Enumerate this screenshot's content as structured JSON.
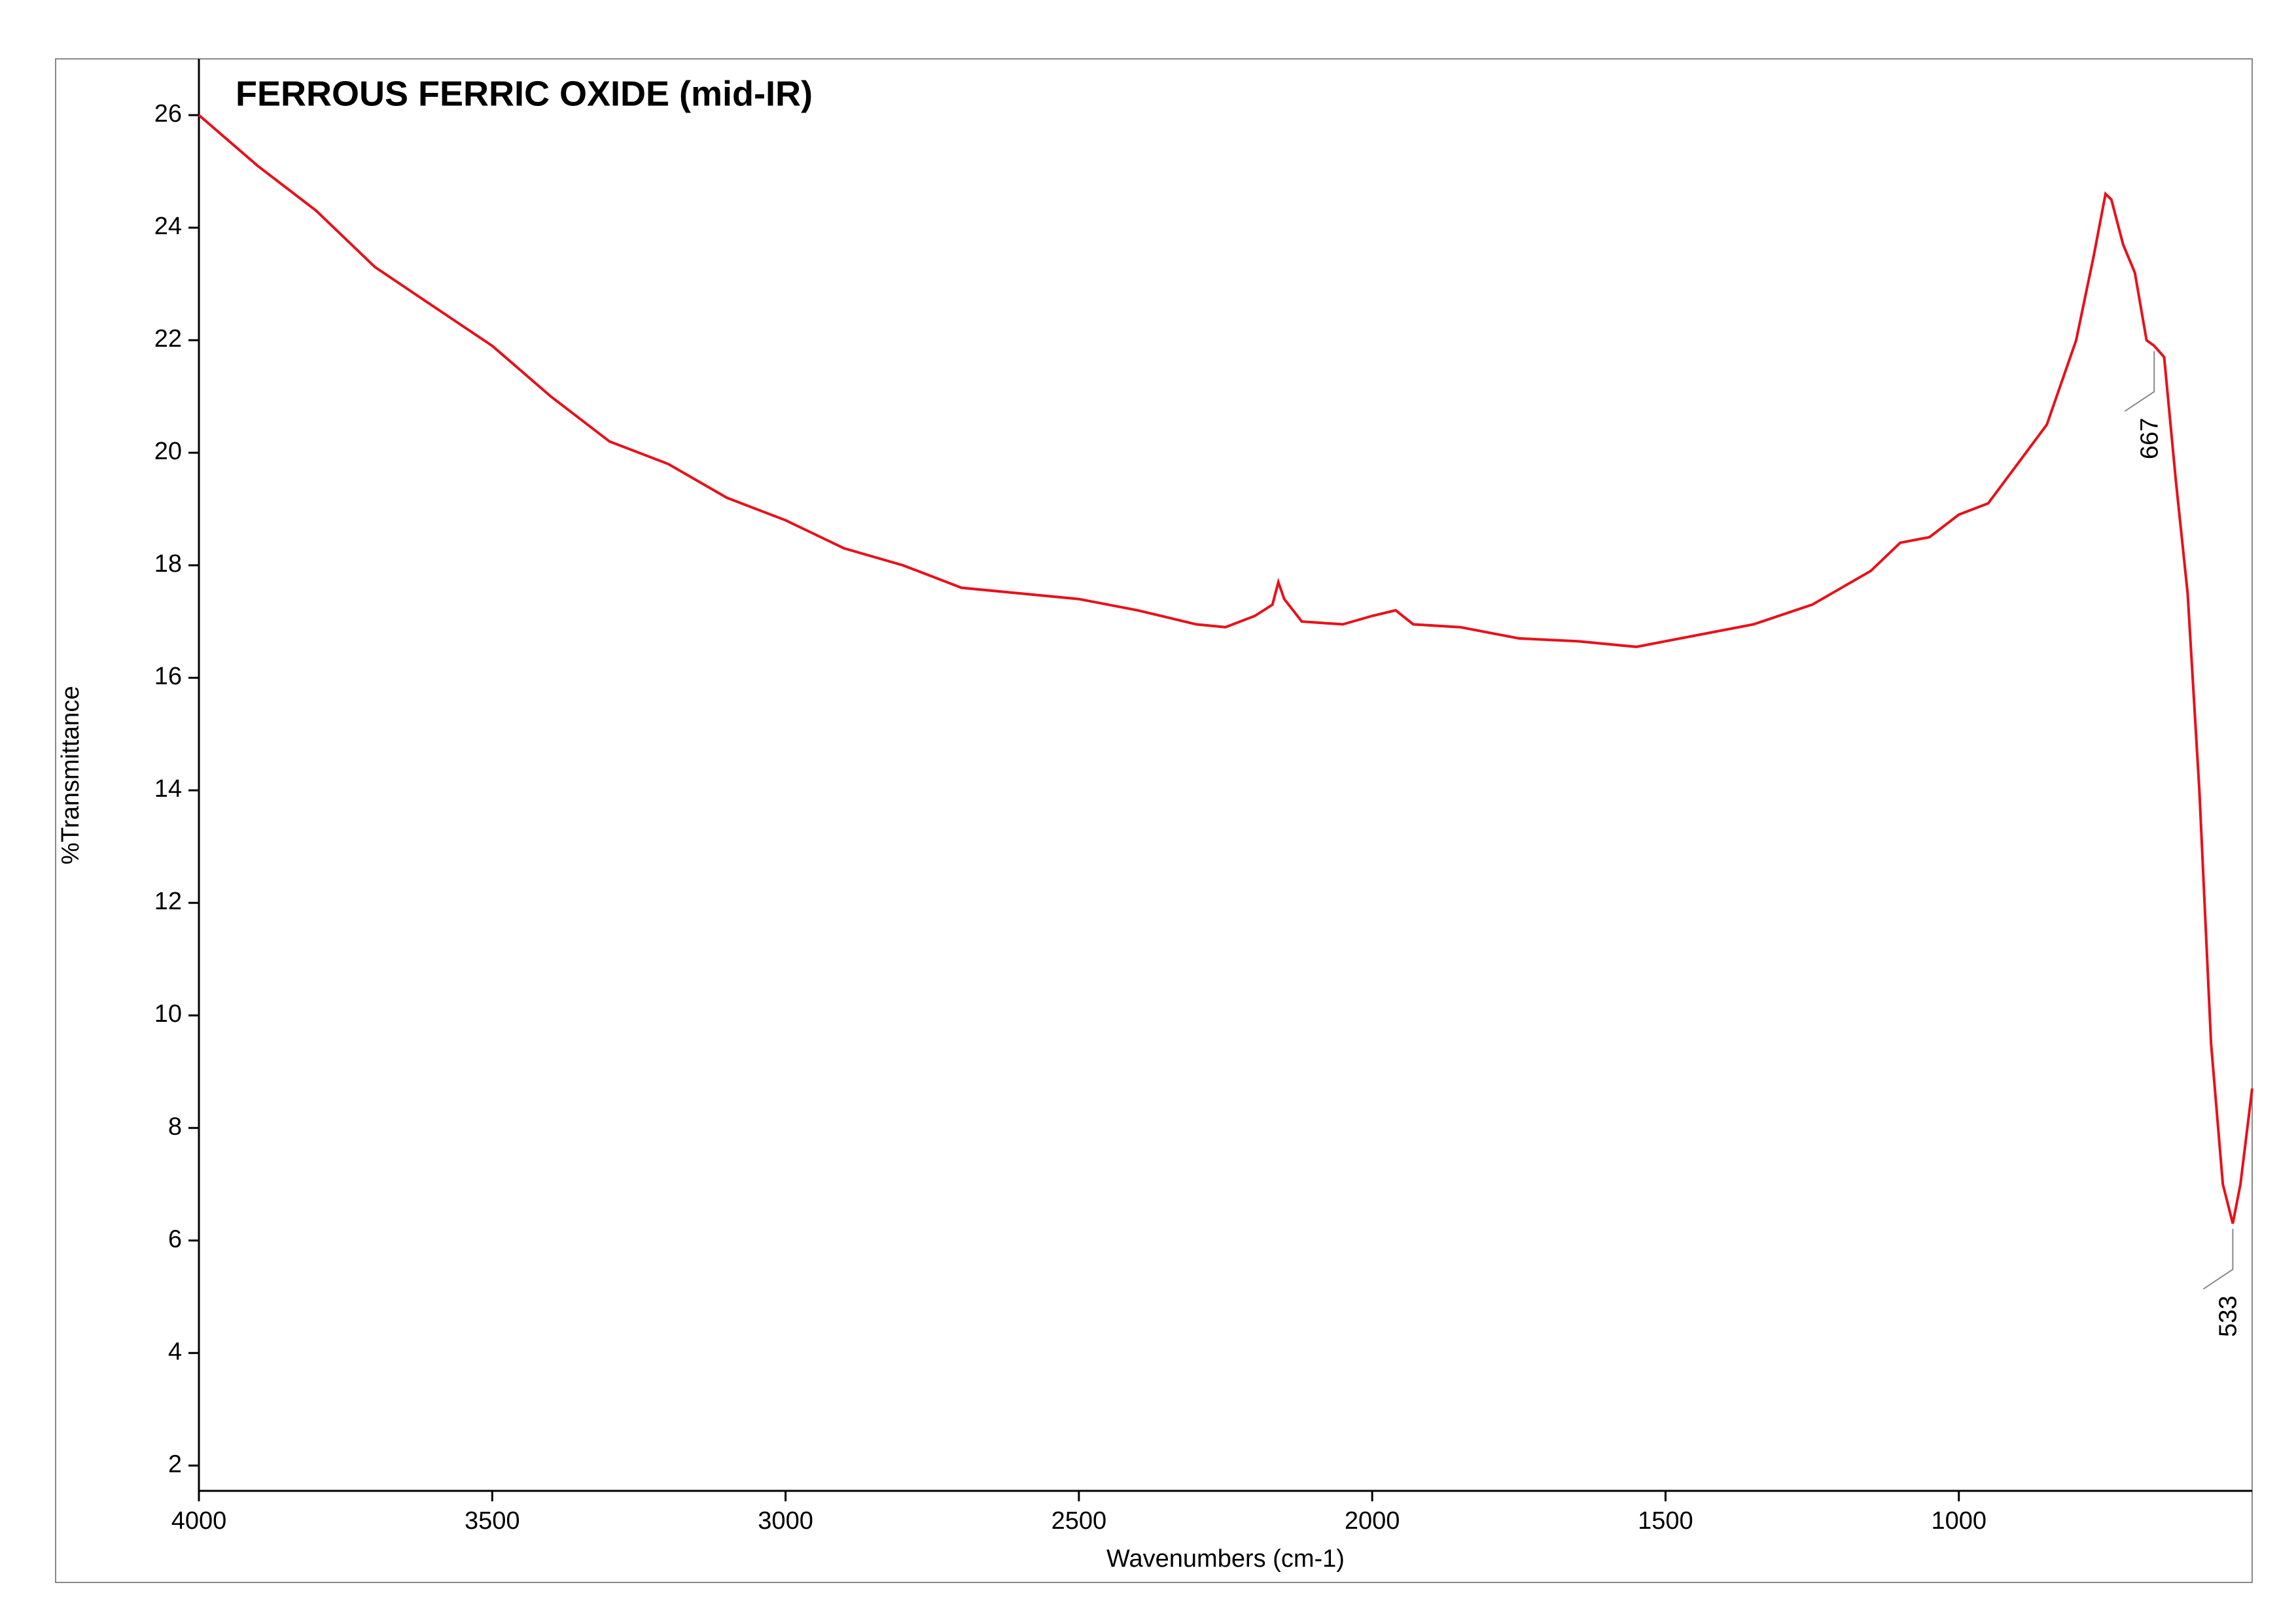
{
  "chart_data": {
    "type": "line",
    "title": "FERROUS FERRIC OXIDE (mid-IR)",
    "x_label": "Wavenumbers (cm-1)",
    "y_label": "%Transmittance",
    "xlim": [
      4000,
      500
    ],
    "ylim": [
      1.55,
      27
    ],
    "xticks": [
      4000,
      3500,
      3000,
      2500,
      2000,
      1500,
      1000
    ],
    "yticks": [
      2,
      4,
      6,
      8,
      10,
      12,
      14,
      16,
      18,
      20,
      22,
      24,
      26
    ],
    "series": [
      {
        "color": "#e8101a",
        "x": [
          4000,
          3900,
          3800,
          3700,
          3600,
          3500,
          3400,
          3300,
          3200,
          3100,
          3000,
          2900,
          2800,
          2700,
          2600,
          2500,
          2400,
          2300,
          2250,
          2200,
          2170,
          2160,
          2150,
          2120,
          2050,
          2000,
          1960,
          1930,
          1850,
          1750,
          1650,
          1550,
          1450,
          1350,
          1250,
          1150,
          1100,
          1050,
          1000,
          950,
          900,
          850,
          800,
          770,
          750,
          740,
          720,
          700,
          680,
          667,
          650,
          630,
          610,
          590,
          570,
          550,
          533,
          520,
          500
        ],
        "values": [
          26.0,
          25.1,
          24.3,
          23.3,
          22.6,
          21.9,
          21.0,
          20.2,
          19.8,
          19.2,
          18.8,
          18.3,
          18.0,
          17.6,
          17.5,
          17.4,
          17.2,
          16.95,
          16.9,
          17.1,
          17.3,
          17.7,
          17.4,
          17.0,
          16.95,
          17.1,
          17.2,
          16.95,
          16.9,
          16.7,
          16.65,
          16.55,
          16.75,
          16.95,
          17.3,
          17.9,
          18.4,
          18.5,
          18.9,
          19.1,
          19.8,
          20.5,
          22.0,
          23.5,
          24.6,
          24.5,
          23.7,
          23.2,
          22.0,
          21.9,
          21.7,
          19.5,
          17.5,
          14.0,
          9.5,
          7.0,
          6.3,
          7.0,
          8.7
        ]
      }
    ],
    "annotations": [
      {
        "x": 667,
        "y": 21.9
      },
      {
        "x": 533,
        "y": 6.3
      }
    ]
  }
}
